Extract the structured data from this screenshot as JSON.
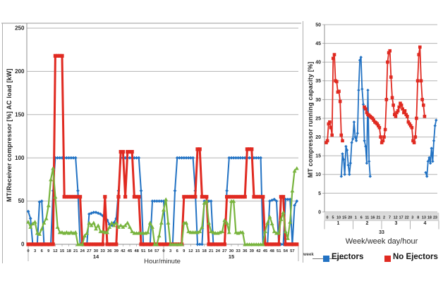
{
  "colors": {
    "ejectors_blue": "#2272c3",
    "no_ejectors_red": "#e02a21",
    "green_series": "#78b43e",
    "grid": "#b3b3b3",
    "axis": "#8f8f8f",
    "border": "#adadad",
    "tick_band": "#dcdcdc",
    "text": "#262626"
  },
  "legend": {
    "ghost_label": "week",
    "items": [
      {
        "label": "Ejectors",
        "color": "#2272c3",
        "marker": "square"
      },
      {
        "label": "No Ejectors",
        "color": "#e02a21",
        "marker": "square"
      }
    ]
  },
  "chart_data": [
    {
      "id": "left-chart",
      "type": "line",
      "title": "",
      "ylabel": "MT/Receiver compressor [%] AC load [kW]",
      "xlabel": "Hour/minute",
      "ylim": [
        0,
        250
      ],
      "grid": true,
      "yticks": [
        0,
        50,
        100,
        150,
        200,
        250
      ],
      "x_tick_labels": [
        "0",
        "3",
        "6",
        "9",
        "12",
        "15",
        "18",
        "21",
        "24",
        "27",
        "30",
        "33",
        "36",
        "39",
        "42",
        "45",
        "48",
        "51",
        "54",
        "57",
        "0",
        "3",
        "6",
        "9",
        "12",
        "15",
        "18",
        "21",
        "24",
        "27",
        "30",
        "33",
        "36",
        "39",
        "42",
        "45",
        "48",
        "51",
        "54",
        "57"
      ],
      "x_group_labels": [
        "14",
        "15"
      ],
      "x_unit": "minute of hour",
      "series": [
        {
          "name": "Ejectors",
          "color": "#2272c3",
          "marker": "diamond",
          "values": [
            38,
            30,
            0,
            0,
            0,
            49,
            50,
            0,
            0,
            0,
            0,
            62,
            100,
            100,
            100,
            100,
            100,
            100,
            100,
            100,
            100,
            100,
            62,
            0,
            0,
            0,
            0,
            35,
            36,
            37,
            37,
            36,
            35,
            33,
            30,
            28,
            23,
            22,
            25,
            30,
            62,
            100,
            100,
            100,
            100,
            100,
            100,
            100,
            100,
            100,
            62,
            0,
            0,
            0,
            0,
            50,
            50,
            50,
            50,
            50,
            50,
            0,
            0,
            0,
            0,
            62,
            100,
            100,
            100,
            100,
            100,
            100,
            100,
            100,
            62,
            0,
            0,
            0,
            50,
            50,
            50,
            50,
            0,
            0,
            0,
            0,
            0,
            0,
            62,
            100,
            100,
            100,
            100,
            100,
            100,
            100,
            100,
            100,
            100,
            100,
            100,
            100,
            100,
            100,
            0,
            0,
            0,
            50,
            51,
            52,
            50,
            0,
            0,
            0,
            52,
            52,
            52,
            0,
            45,
            50
          ]
        },
        {
          "name": "No Ejectors",
          "color": "#e02a21",
          "marker": "square",
          "values": [
            0,
            0,
            0,
            0,
            0,
            0,
            0,
            0,
            0,
            0,
            0,
            0,
            218,
            218,
            218,
            218,
            55,
            55,
            55,
            55,
            55,
            55,
            55,
            55,
            0,
            0,
            0,
            0,
            0,
            0,
            0,
            0,
            0,
            0,
            55,
            0,
            0,
            0,
            0,
            0,
            55,
            107,
            107,
            55,
            107,
            107,
            107,
            55,
            55,
            55,
            0,
            0,
            0,
            0,
            0,
            0,
            0,
            0,
            0,
            0,
            0,
            0,
            0,
            0,
            0,
            0,
            0,
            0,
            0,
            55,
            55,
            55,
            55,
            55,
            55,
            110,
            110,
            55,
            55,
            55,
            0,
            0,
            0,
            0,
            0,
            0,
            0,
            0,
            55,
            55,
            55,
            55,
            55,
            55,
            55,
            55,
            55,
            110,
            110,
            110,
            55,
            55,
            55,
            55,
            55,
            0,
            0,
            0,
            0,
            0,
            0,
            0,
            55,
            55,
            0,
            0,
            0,
            0,
            0,
            0
          ]
        },
        {
          "name": "",
          "color": "#78b43e",
          "marker": "triangle",
          "values": [
            26,
            20,
            24,
            26,
            13,
            12,
            18,
            25,
            30,
            45,
            75,
            88,
            55,
            20,
            14,
            14,
            13,
            14,
            13,
            14,
            13,
            14,
            0,
            0,
            0,
            10,
            13,
            25,
            22,
            25,
            18,
            22,
            15,
            15,
            14,
            14,
            20,
            25,
            22,
            25,
            20,
            22,
            20,
            22,
            25,
            20,
            15,
            13,
            13,
            13,
            13,
            13,
            13,
            14,
            25,
            20,
            0,
            0,
            10,
            25,
            40,
            52,
            25,
            0,
            0,
            0,
            0,
            0,
            0,
            25,
            25,
            15,
            14,
            14,
            14,
            14,
            15,
            20,
            48,
            50,
            25,
            15,
            14,
            13,
            13,
            14,
            15,
            28,
            25,
            14,
            50,
            50,
            14,
            13,
            14,
            14,
            0,
            0,
            0,
            0,
            0,
            0,
            0,
            0,
            0,
            15,
            25,
            32,
            24,
            15,
            13,
            13,
            29,
            37,
            15,
            7,
            26,
            62,
            85,
            88
          ]
        }
      ]
    },
    {
      "id": "right-chart",
      "type": "line",
      "title": "",
      "ylabel": "MT compressor running capacity [%]",
      "xlabel": "Week/week day/hour",
      "ylim": [
        0,
        50
      ],
      "grid": true,
      "yticks": [
        0,
        5,
        10,
        15,
        20,
        25,
        30,
        35,
        40,
        45,
        50
      ],
      "x_hour_tick_labels": [
        "0",
        "5",
        "10",
        "15",
        "20",
        "1",
        "6",
        "11",
        "16",
        "21",
        "2",
        "7",
        "12",
        "17",
        "22",
        "3",
        "8",
        "13",
        "18",
        "23"
      ],
      "x_day_labels": [
        "1",
        "2",
        "3",
        "4"
      ],
      "week_label": "33",
      "x_unit": "hour of day, days 1-4 of week 33",
      "series": [
        {
          "name": "Ejectors",
          "color": "#2272c3",
          "marker": "diamond",
          "values": [
            null,
            null,
            null,
            null,
            null,
            null,
            null,
            null,
            null,
            null,
            null,
            null,
            null,
            9.5,
            15.5,
            14,
            10,
            17.5,
            16.5,
            12.5,
            10,
            13,
            18.5,
            19.5,
            24,
            20,
            19,
            21,
            32.5,
            40.5,
            41.3,
            32.8,
            28.7,
            19,
            17.5,
            13,
            32.5,
            13.5,
            9.5,
            null,
            null,
            null,
            null,
            null,
            null,
            null,
            null,
            null,
            null,
            null,
            null,
            null,
            null,
            null,
            null,
            null,
            null,
            null,
            null,
            null,
            null,
            null,
            null,
            null,
            null,
            null,
            null,
            null,
            null,
            null,
            null,
            null,
            null,
            null,
            null,
            null,
            null,
            null,
            null,
            null,
            null,
            null,
            null,
            null,
            null,
            null,
            10.5,
            9.5,
            13.5,
            14.5,
            13,
            17,
            13.5,
            19,
            23,
            24.5
          ]
        },
        {
          "name": "No Ejectors",
          "color": "#e02a21",
          "marker": "square",
          "values": [
            18.5,
            19,
            23.5,
            24,
            22.5,
            20.5,
            41,
            42,
            35,
            34.8,
            32,
            32.2,
            29.5,
            20.5,
            19,
            null,
            null,
            null,
            null,
            null,
            null,
            null,
            null,
            null,
            null,
            null,
            null,
            null,
            null,
            null,
            null,
            null,
            null,
            28,
            27.5,
            26.5,
            26,
            25.8,
            25.5,
            25.2,
            25,
            24.5,
            24,
            23.8,
            23.5,
            23,
            22.5,
            20,
            18.5,
            19,
            20,
            22,
            30,
            40,
            42.5,
            43,
            36,
            30.5,
            28.5,
            26,
            25.5,
            26.5,
            27,
            28,
            29,
            28.5,
            27.5,
            26.5,
            27,
            26,
            25.5,
            24,
            23.5,
            23,
            22.5,
            19,
            18.5,
            20,
            25,
            35,
            42,
            44,
            35,
            30,
            28.5,
            25.5,
            null,
            null,
            null,
            null,
            null,
            null,
            null,
            null,
            null,
            null
          ]
        }
      ]
    }
  ]
}
